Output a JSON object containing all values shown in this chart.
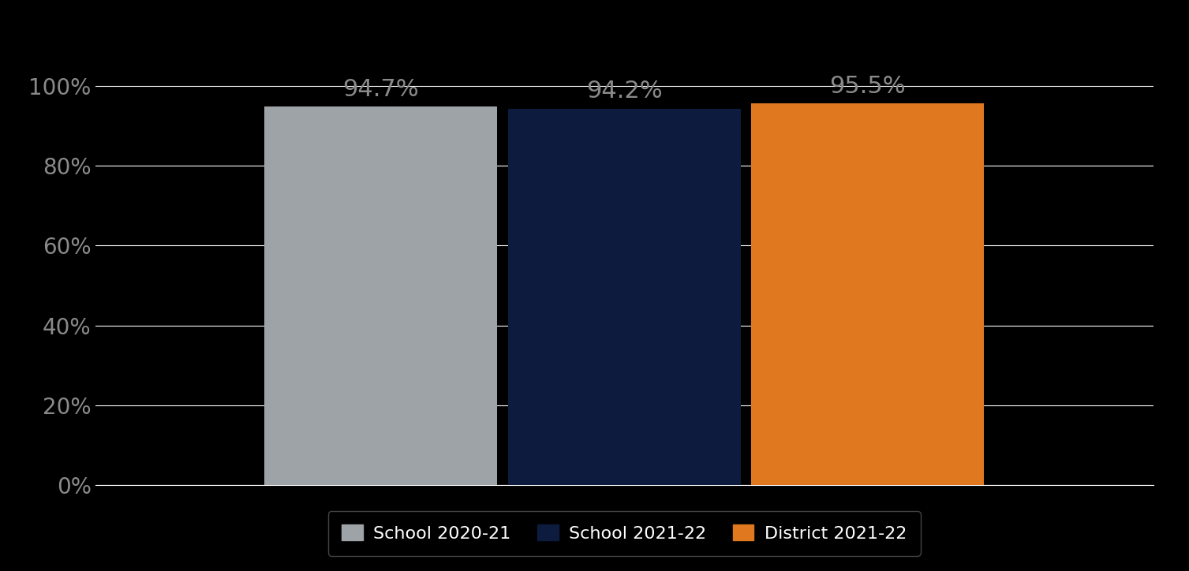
{
  "categories": [
    "School 2020-21",
    "School 2021-22",
    "District 2021-22"
  ],
  "values": [
    94.7,
    94.2,
    95.5
  ],
  "bar_colors": [
    "#9ea3a8",
    "#0d1b3e",
    "#e07820"
  ],
  "background_color": "#000000",
  "plot_bg_color": "#000000",
  "grid_color": "#ffffff",
  "tick_label_color": "#8a8a8a",
  "data_label_color": "#8a8a8a",
  "legend_text_color": "#ffffff",
  "legend_bg_color": "#000000",
  "legend_edge_color": "#555555",
  "yticks": [
    0,
    20,
    40,
    60,
    80,
    100
  ],
  "ylim": [
    0,
    110
  ],
  "bar_width": 0.22,
  "xlim": [
    0,
    1
  ],
  "bar_centers": [
    0.27,
    0.5,
    0.73
  ],
  "figsize": [
    15.07,
    7.24
  ],
  "dpi": 100,
  "data_label_fontsize": 22,
  "tick_fontsize": 20,
  "legend_fontsize": 16
}
